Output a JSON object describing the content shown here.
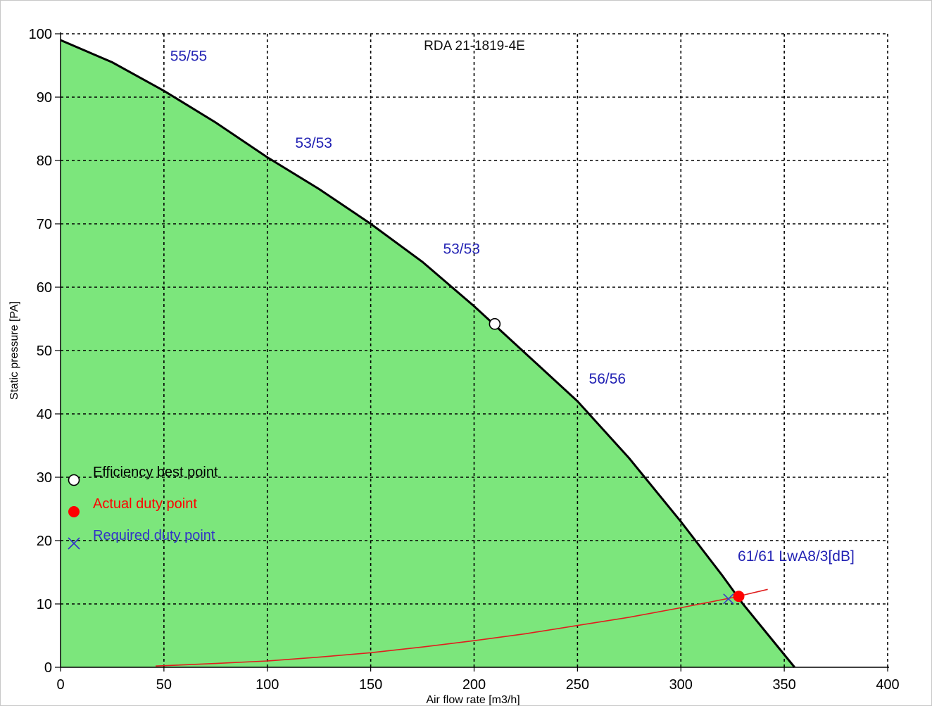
{
  "chart_data": {
    "type": "line",
    "title": "RDA 21-1819-4E",
    "xlabel": "Air flow rate [m3/h]",
    "ylabel": "Static pressure [PA]",
    "xlim": [
      0,
      400
    ],
    "ylim": [
      0,
      100
    ],
    "xticks": [
      "0",
      "50",
      "100",
      "150",
      "200",
      "250",
      "300",
      "350",
      "400"
    ],
    "yticks": [
      "0",
      "10",
      "20",
      "30",
      "40",
      "50",
      "60",
      "70",
      "80",
      "90",
      "100"
    ],
    "grid": true,
    "legend_position": "left",
    "series": [
      {
        "kind": "fan-curve",
        "color": "#000000",
        "fill": "#7ce67c",
        "x": [
          0,
          25,
          50,
          75,
          100,
          125,
          150,
          175,
          200,
          225,
          250,
          275,
          300,
          320,
          330,
          340,
          350,
          355
        ],
        "y": [
          99,
          95.5,
          91,
          86,
          80.5,
          75.5,
          70,
          64,
          57,
          49.5,
          42,
          33,
          23,
          14.5,
          10,
          6,
          2,
          0
        ]
      },
      {
        "kind": "system-curve",
        "color": "#e01e1e",
        "x": [
          46,
          75,
          100,
          125,
          150,
          175,
          200,
          225,
          250,
          275,
          300,
          325,
          342
        ],
        "y": [
          0.2,
          0.6,
          1.0,
          1.6,
          2.3,
          3.2,
          4.2,
          5.3,
          6.6,
          7.9,
          9.4,
          11.0,
          12.3
        ]
      }
    ],
    "points": {
      "efficiency_best": {
        "x": 210,
        "y": 54.2,
        "color": "#ffffff"
      },
      "actual_duty": {
        "x": 328,
        "y": 11.2,
        "color": "#ff0000"
      },
      "required_duty": {
        "x": 323,
        "y": 10.8,
        "color": "#3c3cc8"
      }
    },
    "annotations": [
      {
        "text": "55/55",
        "x": 53,
        "y": 95.7
      },
      {
        "text": "53/53",
        "x": 113.5,
        "y": 82
      },
      {
        "text": "53/53",
        "x": 185,
        "y": 65.3
      },
      {
        "text": "56/56",
        "x": 255.5,
        "y": 44.8
      },
      {
        "text": "61/61 LwA8/3[dB]",
        "x": 327.5,
        "y": 16.8
      }
    ],
    "legend": [
      {
        "label": "Efficiency best point",
        "marker": "circle-open",
        "color": "#000000"
      },
      {
        "label": "Actual duty point",
        "marker": "circle-filled",
        "color": "#ff0000"
      },
      {
        "label": "Required duty point",
        "marker": "cross",
        "color": "#3232c8"
      }
    ]
  }
}
